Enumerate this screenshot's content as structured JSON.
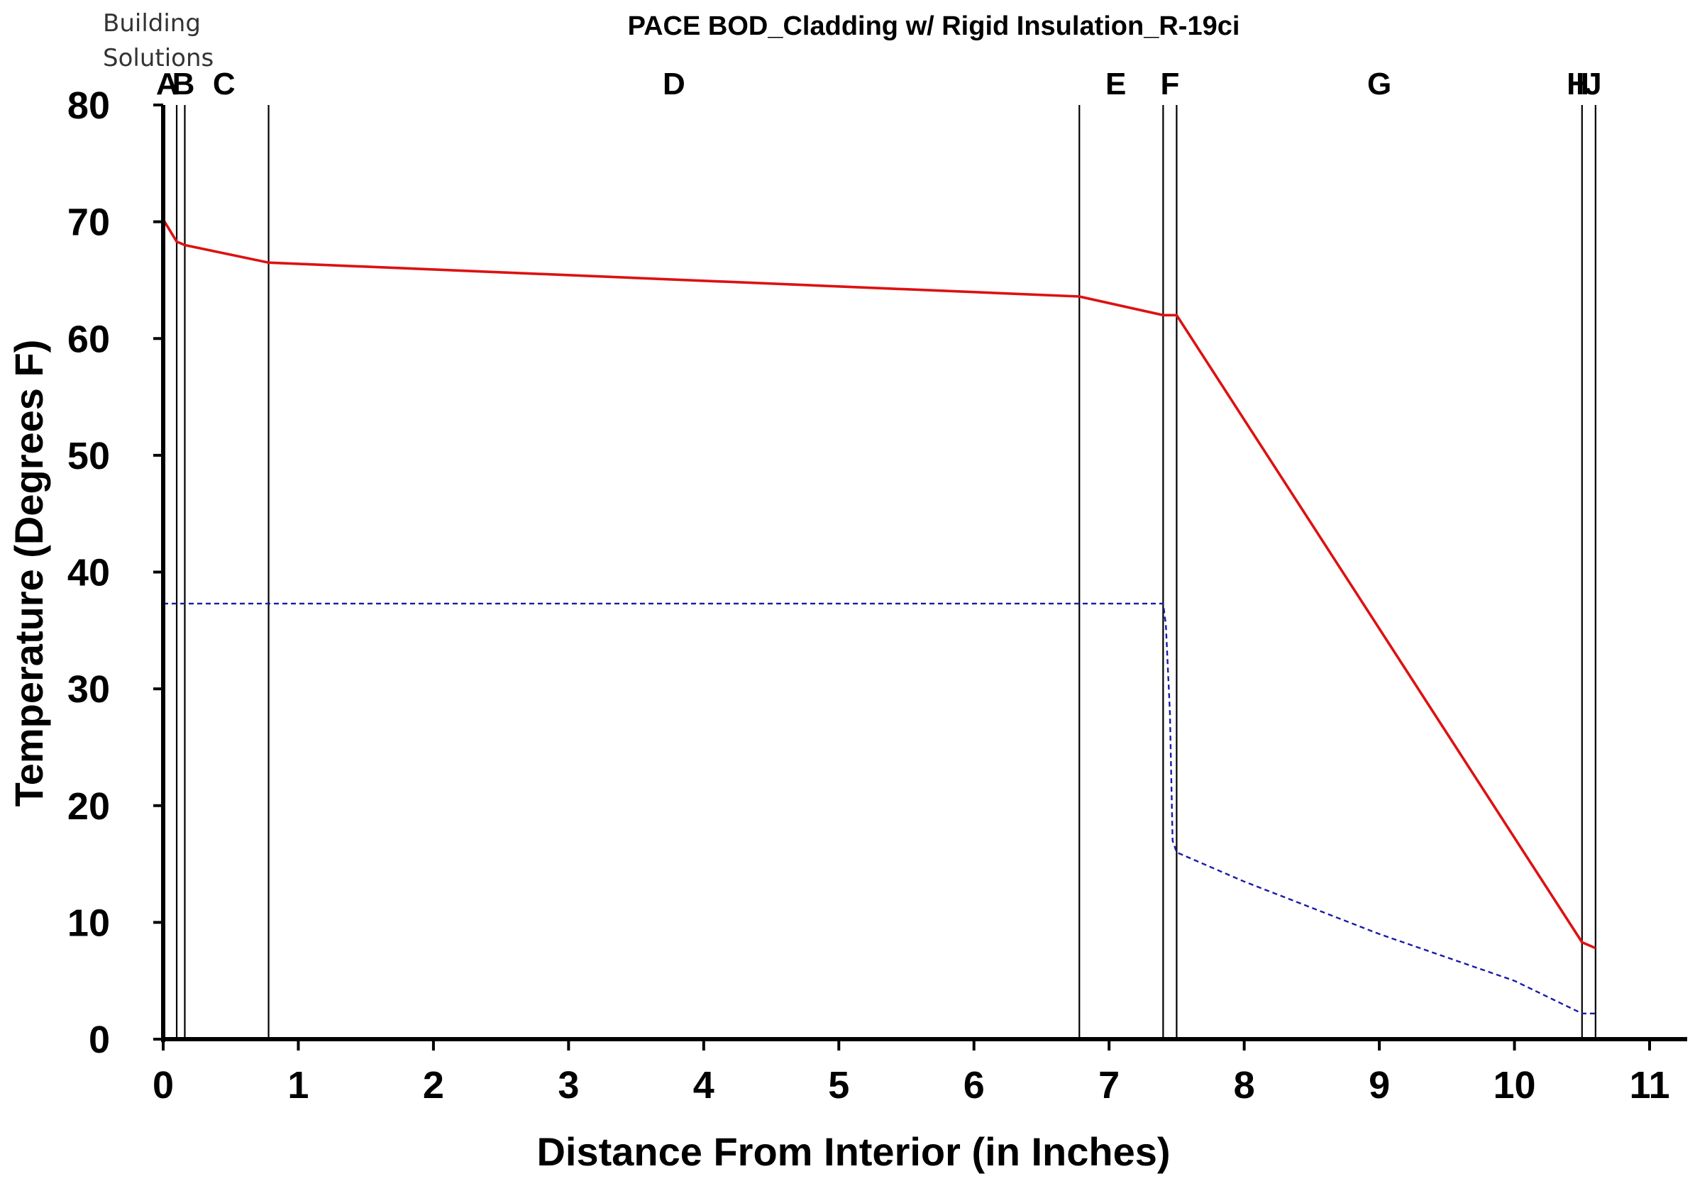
{
  "brand": {
    "line1": "Building",
    "line2": "Solutions"
  },
  "chart_data": {
    "type": "line",
    "title": "",
    "subtitle": "PACE BOD_Cladding w/ Rigid Insulation_R-19ci",
    "xlabel": "Distance From Interior (in Inches)",
    "ylabel": "Temperature (Degrees F)",
    "xlim": [
      0,
      11
    ],
    "ylim": [
      0,
      80
    ],
    "x_ticks": [
      "0",
      "1",
      "2",
      "3",
      "4",
      "5",
      "6",
      "7",
      "8",
      "9",
      "10",
      "11"
    ],
    "y_ticks": [
      "0",
      "10",
      "20",
      "30",
      "40",
      "50",
      "60",
      "70",
      "80"
    ],
    "grid": false,
    "layer_boundaries": [
      0,
      0.1,
      0.16,
      0.78,
      6.78,
      7.4,
      7.5,
      10.5,
      10.6
    ],
    "layers": [
      {
        "label": "A",
        "x": 0.03
      },
      {
        "label": "B",
        "x": 0.15
      },
      {
        "label": "C",
        "x": 0.45
      },
      {
        "label": "D",
        "x": 3.78
      },
      {
        "label": "E",
        "x": 7.05
      },
      {
        "label": "F",
        "x": 7.45
      },
      {
        "label": "G",
        "x": 9.0
      },
      {
        "label": "H",
        "x": 10.47
      },
      {
        "label": "IJ",
        "x": 10.55
      }
    ],
    "series": [
      {
        "color": "#dd1111",
        "style": "solid",
        "x": [
          0,
          0.1,
          0.16,
          0.78,
          6.78,
          7.4,
          7.5,
          10.5,
          10.6
        ],
        "y": [
          70.2,
          68.3,
          68.0,
          66.5,
          63.6,
          62.0,
          62.0,
          8.3,
          7.8
        ]
      },
      {
        "color": "#1a1aa8",
        "style": "dashed",
        "x": [
          0,
          7.4,
          7.42,
          7.45,
          7.47,
          7.5,
          8.0,
          9.0,
          10.0,
          10.5,
          10.6
        ],
        "y": [
          37.3,
          37.3,
          35.5,
          28.0,
          17.0,
          16.0,
          13.5,
          9.0,
          5.0,
          2.2,
          2.2
        ]
      }
    ]
  }
}
